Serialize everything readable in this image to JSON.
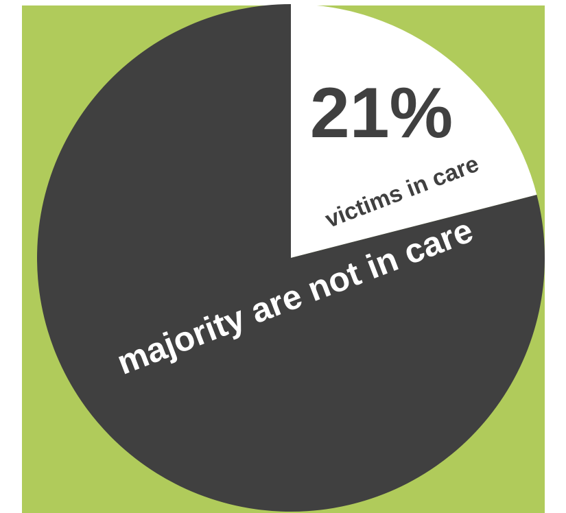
{
  "chart_data": {
    "type": "pie",
    "title": "",
    "slices": [
      {
        "label": "victims in care",
        "value": 21,
        "value_label": "21%",
        "color": "#ffffff"
      },
      {
        "label": "majority are not in care",
        "value": 79,
        "color": "#404040"
      }
    ],
    "background_color": "#b0cb5b",
    "text_color": "#404040",
    "contrast_text_color": "#ffffff"
  }
}
